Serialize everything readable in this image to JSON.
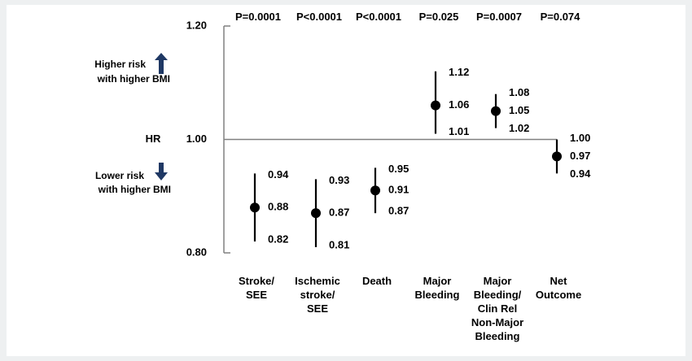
{
  "chart_data": {
    "type": "scatter",
    "ylabel": "HR",
    "ylim": [
      0.8,
      1.2
    ],
    "yticks": [
      {
        "value": 1.2,
        "label": "1.20"
      },
      {
        "value": 1.0,
        "label": "1.00"
      },
      {
        "value": 0.8,
        "label": "0.80"
      }
    ],
    "reference_line": 1.0,
    "annotations": {
      "higher": [
        "Higher risk",
        "with higher BMI"
      ],
      "lower": [
        "Lower risk",
        "with higher BMI"
      ]
    },
    "categories": [
      {
        "label": [
          "Stroke/",
          "SEE"
        ],
        "p": "P=0.0001",
        "hr": 0.88,
        "lo": 0.82,
        "hi": 0.94,
        "hr_label": "0.88",
        "lo_label": "0.82",
        "hi_label": "0.94"
      },
      {
        "label": [
          "Ischemic",
          "stroke/",
          "SEE"
        ],
        "p": "P<0.0001",
        "hr": 0.87,
        "lo": 0.81,
        "hi": 0.93,
        "hr_label": "0.87",
        "lo_label": "0.81",
        "hi_label": "0.93"
      },
      {
        "label": [
          "Death"
        ],
        "p": "P<0.0001",
        "hr": 0.91,
        "lo": 0.87,
        "hi": 0.95,
        "hr_label": "0.91",
        "lo_label": "0.87",
        "hi_label": "0.95"
      },
      {
        "label": [
          "Major",
          "Bleeding"
        ],
        "p": "P=0.025",
        "hr": 1.06,
        "lo": 1.01,
        "hi": 1.12,
        "hr_label": "1.06",
        "lo_label": "1.01",
        "hi_label": "1.12"
      },
      {
        "label": [
          "Major",
          "Bleeding/",
          "Clin Rel",
          "Non-Major",
          "Bleeding"
        ],
        "p": "P=0.0007",
        "hr": 1.05,
        "lo": 1.02,
        "hi": 1.08,
        "hr_label": "1.05",
        "lo_label": "1.02",
        "hi_label": "1.08"
      },
      {
        "label": [
          "Net",
          "Outcome"
        ],
        "p": "P=0.074",
        "hr": 0.97,
        "lo": 0.94,
        "hi": 1.0,
        "hr_label": "0.97",
        "lo_label": "0.94",
        "hi_label": "1.00"
      }
    ],
    "colors": {
      "marker": "#000000",
      "axis": "#808080",
      "arrow": "#1f3864"
    }
  }
}
